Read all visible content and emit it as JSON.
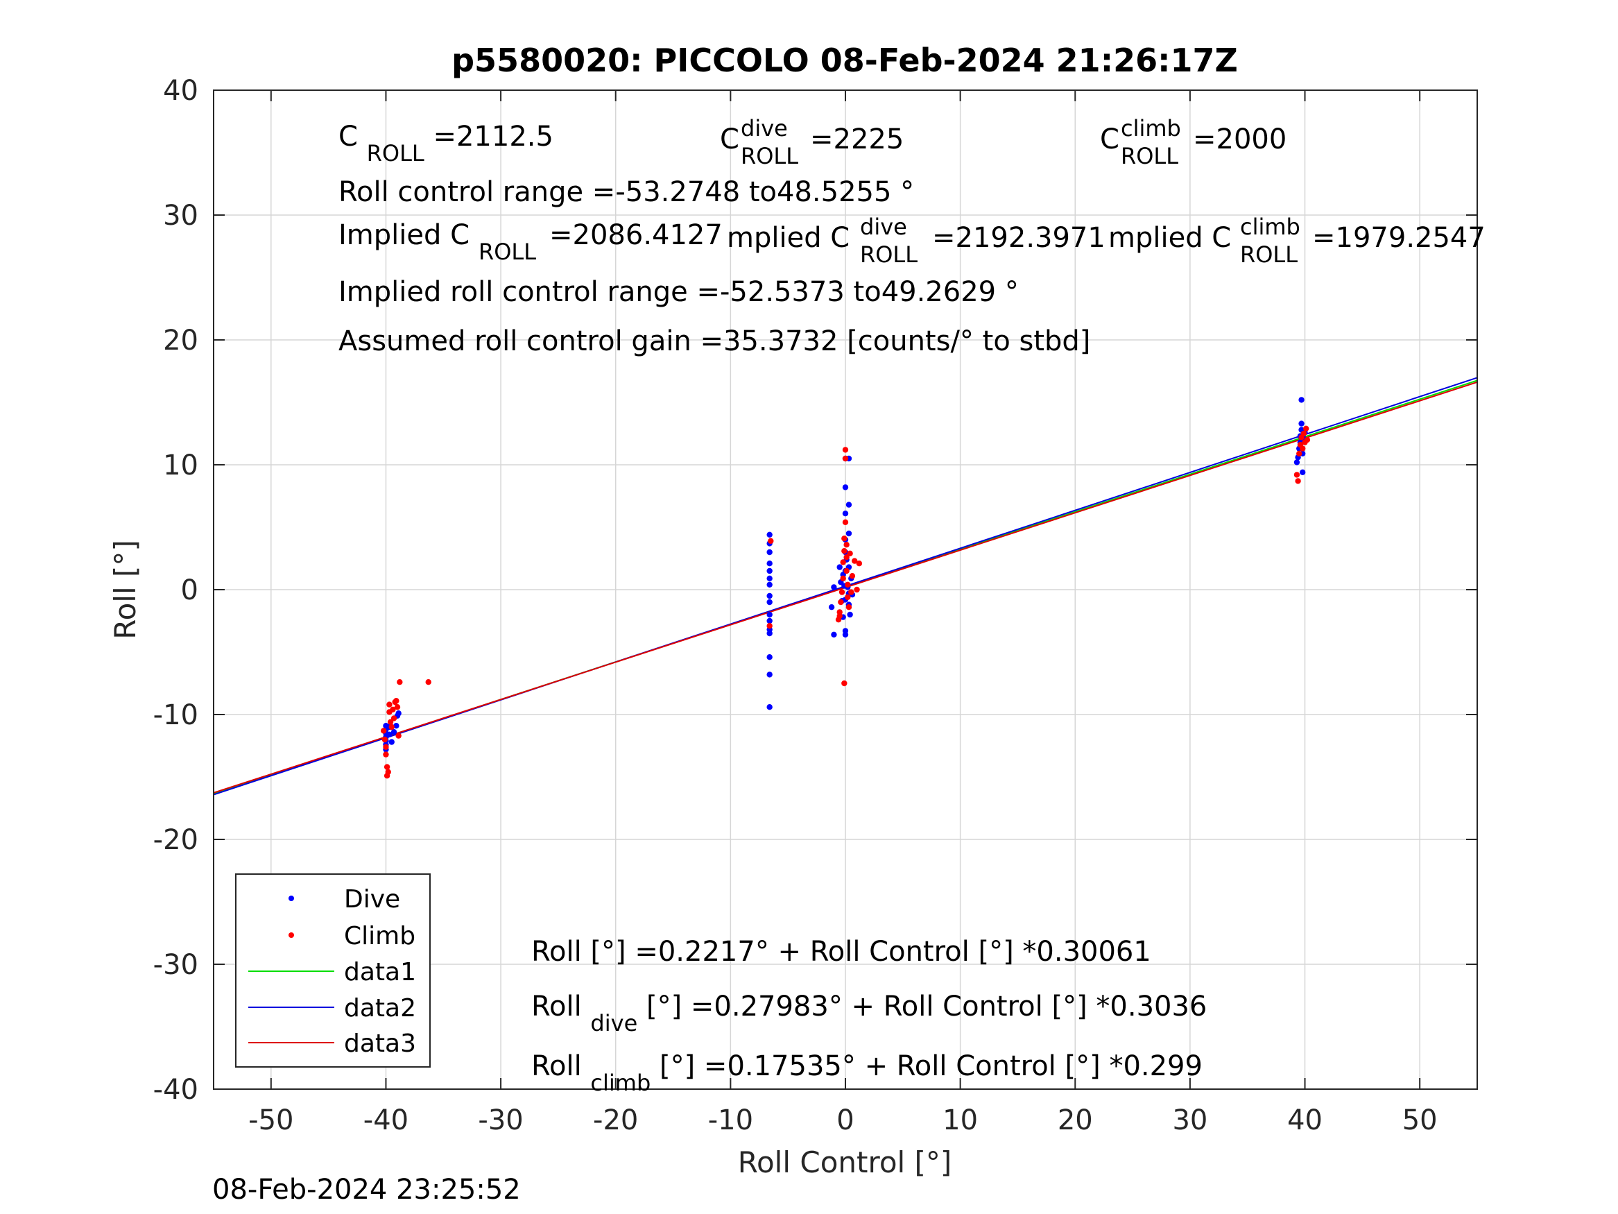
{
  "chart_data": {
    "type": "scatter",
    "title": "p5580020: PICCOLO 08-Feb-2024 21:26:17Z",
    "xlabel": "Roll Control [°]",
    "ylabel": "Roll [°]",
    "xlim": [
      -55,
      55
    ],
    "ylim": [
      -40,
      40
    ],
    "x_ticks": [
      "-50",
      "-40",
      "-30",
      "-20",
      "-10",
      "0",
      "10",
      "20",
      "30",
      "40",
      "50"
    ],
    "y_ticks": [
      "-40",
      "-30",
      "-20",
      "-10",
      "0",
      "10",
      "20",
      "30",
      "40"
    ],
    "grid": true,
    "legend_position": "bottom-left",
    "series": [
      {
        "name": "Dive",
        "mode": "markers",
        "color": "#0000ff",
        "points": [
          [
            -40.0,
            -10.9
          ],
          [
            -40.0,
            -11.2
          ],
          [
            -40.0,
            -11.5
          ],
          [
            -40.0,
            -11.8
          ],
          [
            -40.0,
            -12.1
          ],
          [
            -40.0,
            -12.4
          ],
          [
            -40.0,
            -12.8
          ],
          [
            -39.7,
            -11.0
          ],
          [
            -39.7,
            -11.6
          ],
          [
            -39.5,
            -12.2
          ],
          [
            -39.3,
            -11.4
          ],
          [
            -39.1,
            -10.9
          ],
          [
            -39.0,
            -10.1
          ],
          [
            -38.9,
            -9.9
          ],
          [
            -6.6,
            4.4
          ],
          [
            -6.6,
            3.7
          ],
          [
            -6.6,
            3.0
          ],
          [
            -6.6,
            2.1
          ],
          [
            -6.6,
            1.5
          ],
          [
            -6.6,
            0.9
          ],
          [
            -6.6,
            0.4
          ],
          [
            -6.6,
            -0.5
          ],
          [
            -6.6,
            -1.0
          ],
          [
            -6.6,
            -2.0
          ],
          [
            -6.6,
            -2.5
          ],
          [
            -6.6,
            -3.2
          ],
          [
            -6.6,
            -3.5
          ],
          [
            -6.6,
            -5.4
          ],
          [
            -6.6,
            -6.8
          ],
          [
            -6.6,
            -9.4
          ],
          [
            -1.0,
            -3.6
          ],
          [
            -1.2,
            -1.4
          ],
          [
            -1.0,
            0.2
          ],
          [
            -0.5,
            1.8
          ],
          [
            -0.4,
            0.6
          ],
          [
            -0.3,
            -0.9
          ],
          [
            -0.2,
            1.2
          ],
          [
            -0.2,
            -2.2
          ],
          [
            -0.1,
            0.3
          ],
          [
            0.0,
            10.5
          ],
          [
            0.0,
            8.2
          ],
          [
            0.0,
            6.1
          ],
          [
            0.0,
            4.0
          ],
          [
            0.0,
            3.0
          ],
          [
            0.0,
            1.5
          ],
          [
            0.0,
            -0.8
          ],
          [
            0.0,
            -3.3
          ],
          [
            0.0,
            -3.6
          ],
          [
            0.1,
            2.4
          ],
          [
            0.2,
            0.2
          ],
          [
            0.3,
            10.5
          ],
          [
            0.3,
            6.8
          ],
          [
            0.3,
            4.5
          ],
          [
            0.3,
            1.8
          ],
          [
            0.3,
            -0.3
          ],
          [
            0.3,
            -1.2
          ],
          [
            0.4,
            -2.0
          ],
          [
            0.5,
            0.9
          ],
          [
            0.6,
            -0.4
          ],
          [
            39.3,
            10.2
          ],
          [
            39.4,
            10.6
          ],
          [
            39.5,
            11.3
          ],
          [
            39.6,
            11.8
          ],
          [
            39.6,
            12.3
          ],
          [
            39.7,
            12.8
          ],
          [
            39.7,
            13.3
          ],
          [
            39.7,
            15.2
          ],
          [
            39.8,
            9.4
          ],
          [
            39.8,
            10.9
          ],
          [
            39.9,
            12.1
          ],
          [
            40.0,
            12.6
          ]
        ]
      },
      {
        "name": "Climb",
        "mode": "markers",
        "color": "#ff0000",
        "points": [
          [
            -40.2,
            -11.3
          ],
          [
            -40.1,
            -12.0
          ],
          [
            -40.0,
            -12.6
          ],
          [
            -40.0,
            -13.2
          ],
          [
            -39.9,
            -14.2
          ],
          [
            -39.9,
            -14.9
          ],
          [
            -39.8,
            -14.6
          ],
          [
            -39.7,
            -9.2
          ],
          [
            -39.7,
            -9.8
          ],
          [
            -39.6,
            -10.6
          ],
          [
            -39.5,
            -11.0
          ],
          [
            -39.4,
            -9.6
          ],
          [
            -39.3,
            -10.3
          ],
          [
            -39.2,
            -9.0
          ],
          [
            -39.1,
            -8.9
          ],
          [
            -39.0,
            -9.4
          ],
          [
            -38.9,
            -11.7
          ],
          [
            -38.8,
            -7.4
          ],
          [
            -36.3,
            -7.4
          ],
          [
            -6.5,
            3.9
          ],
          [
            -6.6,
            -2.9
          ],
          [
            -0.6,
            -2.4
          ],
          [
            -0.5,
            -1.8
          ],
          [
            -0.5,
            -2.1
          ],
          [
            -0.4,
            -1.0
          ],
          [
            -0.3,
            -0.2
          ],
          [
            -0.2,
            0.9
          ],
          [
            -0.2,
            2.2
          ],
          [
            -0.1,
            3.1
          ],
          [
            -0.1,
            4.1
          ],
          [
            -0.1,
            -7.5
          ],
          [
            0.0,
            11.2
          ],
          [
            0.0,
            10.5
          ],
          [
            0.0,
            5.4
          ],
          [
            0.1,
            3.6
          ],
          [
            0.1,
            2.6
          ],
          [
            0.1,
            1.5
          ],
          [
            0.2,
            0.4
          ],
          [
            0.2,
            -0.6
          ],
          [
            0.3,
            -1.4
          ],
          [
            0.4,
            2.9
          ],
          [
            0.5,
            -0.2
          ],
          [
            0.6,
            1.1
          ],
          [
            0.8,
            2.3
          ],
          [
            1.0,
            0.0
          ],
          [
            1.2,
            2.1
          ],
          [
            39.3,
            9.2
          ],
          [
            39.4,
            8.7
          ],
          [
            39.5,
            10.9
          ],
          [
            39.6,
            11.6
          ],
          [
            39.7,
            12.2
          ],
          [
            39.8,
            11.3
          ],
          [
            39.9,
            12.5
          ],
          [
            40.0,
            11.8
          ],
          [
            40.1,
            12.9
          ],
          [
            40.2,
            12.0
          ]
        ]
      },
      {
        "name": "data1",
        "mode": "line",
        "color": "#00dd00",
        "intercept": 0.2217,
        "slope": 0.30061
      },
      {
        "name": "data2",
        "mode": "line",
        "color": "#0000dd",
        "intercept": 0.27983,
        "slope": 0.3036
      },
      {
        "name": "data3",
        "mode": "line",
        "color": "#dd0000",
        "intercept": 0.17535,
        "slope": 0.299
      }
    ],
    "annotations": {
      "c_roll": "C_ROLL =2112.5",
      "c_roll_dive": "C_ROLL^dive =2225",
      "c_roll_climb": "C_ROLL^climb =2000",
      "roll_control_range": "Roll control range =-53.2748 to48.5255 °",
      "implied_c_roll": "Implied C_ROLL =2086.4127",
      "implied_c_roll_dive": "Implied C_ROLL^dive =2192.3971",
      "implied_c_roll_climb": "Implied C_ROLL^climb =1979.2547",
      "implied_range": "Implied roll control range =-52.5373 to49.2629 °",
      "gain": "Assumed roll control gain =35.3732 [counts/° to stbd]",
      "fit_all": "Roll [°] =0.2217° + Roll Control [°] *0.30061",
      "fit_dive": "Roll_dive [°] =0.27983° + Roll Control [°] *0.3036",
      "fit_climb": "Roll_climb [°] =0.17535° + Roll Control [°] *0.299"
    }
  },
  "labels": {
    "c_label": "C",
    "roll_sub": "ROLL",
    "dive_sup": "dive",
    "climb_sup": "climb",
    "c_roll_value": "=2112.5",
    "c_dive_value": "=2225",
    "c_climb_value": "=2000",
    "roll_control_range": "Roll control range =-53.2748 to48.5255 °",
    "implied_prefix": "Implied C",
    "implied_prefix_overlap": "mplied C",
    "implied_value": "=2086.4127",
    "implied_dive_value": "=2192.3971",
    "implied_climb_value": "=1979.2547",
    "implied_range": "Implied roll control range =-52.5373 to49.2629 °",
    "gain": "Assumed roll control gain =35.3732 [counts/° to stbd]",
    "fit_all": "Roll [°] =0.2217° + Roll Control [°] *0.30061",
    "fit_roll": "Roll",
    "fit_dive_sub": "dive",
    "fit_dive_rest": " [°] =0.27983° + Roll Control [°] *0.3036",
    "fit_climb_sub": "climb",
    "fit_climb_rest": " [°] =0.17535° + Roll Control [°] *0.299"
  },
  "footer": {
    "timestamp": "08-Feb-2024 23:25:52"
  }
}
